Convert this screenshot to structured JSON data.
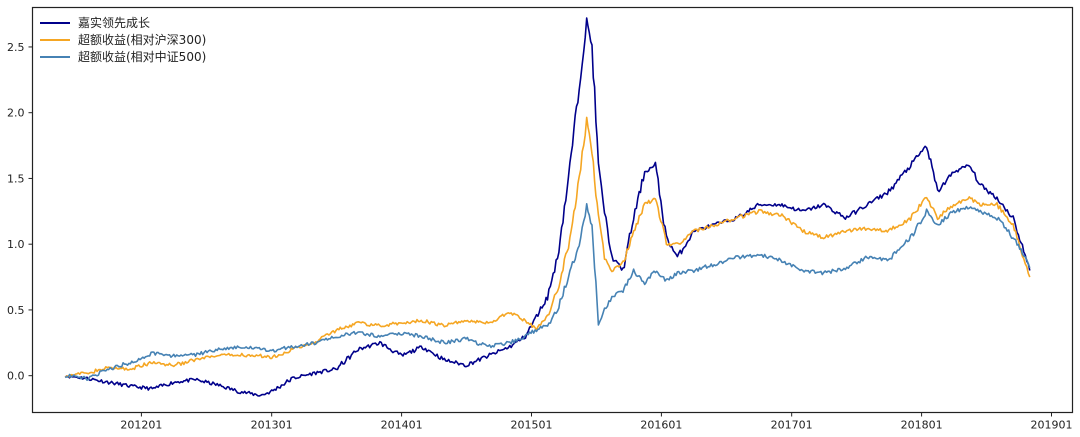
{
  "chart_data": {
    "type": "line",
    "title": "",
    "xlabel": "",
    "ylabel": "",
    "legend_position": "top-left",
    "grid": false,
    "xlim": [
      "2011-03-01",
      "2019-03-01"
    ],
    "ylim": [
      -0.28,
      2.8
    ],
    "x_ticks": [
      {
        "date": "2012-01-01",
        "label": "201201"
      },
      {
        "date": "2013-01-01",
        "label": "201301"
      },
      {
        "date": "2014-01-01",
        "label": "201401"
      },
      {
        "date": "2015-01-01",
        "label": "201501"
      },
      {
        "date": "2016-01-01",
        "label": "201601"
      },
      {
        "date": "2017-01-01",
        "label": "201701"
      },
      {
        "date": "2018-01-01",
        "label": "201801"
      },
      {
        "date": "2019-01-01",
        "label": "201901"
      }
    ],
    "y_ticks": [
      {
        "value": 0.0,
        "label": "0.0"
      },
      {
        "value": 0.5,
        "label": "0.5"
      },
      {
        "value": 1.0,
        "label": "1.0"
      },
      {
        "value": 1.5,
        "label": "1.5"
      },
      {
        "value": 2.0,
        "label": "2.0"
      },
      {
        "value": 2.5,
        "label": "2.5"
      }
    ],
    "series": [
      {
        "name": "嘉实领先成长",
        "color": "#00008b",
        "points": [
          [
            "2011-06-01",
            0.0
          ],
          [
            "2011-08-01",
            -0.02
          ],
          [
            "2011-10-01",
            -0.05
          ],
          [
            "2011-12-01",
            -0.08
          ],
          [
            "2012-02-01",
            -0.1
          ],
          [
            "2012-04-01",
            -0.05
          ],
          [
            "2012-06-01",
            -0.03
          ],
          [
            "2012-08-01",
            -0.07
          ],
          [
            "2012-10-01",
            -0.12
          ],
          [
            "2012-12-01",
            -0.15
          ],
          [
            "2013-01-01",
            -0.12
          ],
          [
            "2013-03-01",
            -0.02
          ],
          [
            "2013-05-01",
            0.02
          ],
          [
            "2013-07-01",
            0.05
          ],
          [
            "2013-09-01",
            0.2
          ],
          [
            "2013-11-01",
            0.25
          ],
          [
            "2014-01-01",
            0.15
          ],
          [
            "2014-03-01",
            0.22
          ],
          [
            "2014-05-01",
            0.12
          ],
          [
            "2014-07-01",
            0.08
          ],
          [
            "2014-09-01",
            0.15
          ],
          [
            "2014-11-01",
            0.22
          ],
          [
            "2014-12-15",
            0.3
          ],
          [
            "2015-01-15",
            0.45
          ],
          [
            "2015-02-15",
            0.6
          ],
          [
            "2015-03-15",
            0.9
          ],
          [
            "2015-04-15",
            1.5
          ],
          [
            "2015-05-15",
            2.2
          ],
          [
            "2015-06-05",
            2.7
          ],
          [
            "2015-06-20",
            2.5
          ],
          [
            "2015-07-08",
            1.6
          ],
          [
            "2015-07-25",
            1.25
          ],
          [
            "2015-08-15",
            0.9
          ],
          [
            "2015-09-15",
            0.8
          ],
          [
            "2015-10-15",
            1.2
          ],
          [
            "2015-11-15",
            1.55
          ],
          [
            "2015-12-15",
            1.6
          ],
          [
            "2016-01-15",
            1.05
          ],
          [
            "2016-02-15",
            0.9
          ],
          [
            "2016-04-01",
            1.1
          ],
          [
            "2016-06-01",
            1.15
          ],
          [
            "2016-08-01",
            1.2
          ],
          [
            "2016-10-01",
            1.3
          ],
          [
            "2016-12-01",
            1.3
          ],
          [
            "2017-02-01",
            1.25
          ],
          [
            "2017-04-01",
            1.3
          ],
          [
            "2017-06-01",
            1.2
          ],
          [
            "2017-08-01",
            1.3
          ],
          [
            "2017-10-01",
            1.4
          ],
          [
            "2017-12-01",
            1.6
          ],
          [
            "2018-01-15",
            1.75
          ],
          [
            "2018-02-15",
            1.4
          ],
          [
            "2018-04-01",
            1.55
          ],
          [
            "2018-05-15",
            1.6
          ],
          [
            "2018-06-15",
            1.45
          ],
          [
            "2018-08-01",
            1.35
          ],
          [
            "2018-09-15",
            1.2
          ],
          [
            "2018-10-15",
            0.95
          ],
          [
            "2018-11-01",
            0.8
          ]
        ]
      },
      {
        "name": "超额收益(相对沪深300)",
        "color": "#f5a623",
        "points": [
          [
            "2011-06-01",
            0.0
          ],
          [
            "2011-08-01",
            0.02
          ],
          [
            "2011-10-01",
            0.06
          ],
          [
            "2011-12-01",
            0.05
          ],
          [
            "2012-02-01",
            0.1
          ],
          [
            "2012-04-01",
            0.08
          ],
          [
            "2012-06-01",
            0.12
          ],
          [
            "2012-08-01",
            0.15
          ],
          [
            "2012-10-01",
            0.16
          ],
          [
            "2012-12-01",
            0.15
          ],
          [
            "2013-01-01",
            0.14
          ],
          [
            "2013-03-01",
            0.2
          ],
          [
            "2013-05-01",
            0.25
          ],
          [
            "2013-07-01",
            0.35
          ],
          [
            "2013-09-01",
            0.4
          ],
          [
            "2013-11-01",
            0.38
          ],
          [
            "2014-01-01",
            0.4
          ],
          [
            "2014-03-01",
            0.42
          ],
          [
            "2014-05-01",
            0.38
          ],
          [
            "2014-07-01",
            0.42
          ],
          [
            "2014-09-01",
            0.4
          ],
          [
            "2014-11-01",
            0.48
          ],
          [
            "2014-12-15",
            0.42
          ],
          [
            "2015-01-15",
            0.35
          ],
          [
            "2015-02-15",
            0.45
          ],
          [
            "2015-03-15",
            0.65
          ],
          [
            "2015-04-15",
            1.0
          ],
          [
            "2015-05-15",
            1.5
          ],
          [
            "2015-06-05",
            1.95
          ],
          [
            "2015-06-20",
            1.7
          ],
          [
            "2015-07-08",
            1.2
          ],
          [
            "2015-07-25",
            0.9
          ],
          [
            "2015-08-15",
            0.8
          ],
          [
            "2015-09-15",
            0.85
          ],
          [
            "2015-10-15",
            1.1
          ],
          [
            "2015-11-15",
            1.3
          ],
          [
            "2015-12-15",
            1.35
          ],
          [
            "2016-01-15",
            1.0
          ],
          [
            "2016-02-15",
            1.0
          ],
          [
            "2016-04-01",
            1.1
          ],
          [
            "2016-06-01",
            1.15
          ],
          [
            "2016-08-01",
            1.2
          ],
          [
            "2016-10-01",
            1.25
          ],
          [
            "2016-12-01",
            1.22
          ],
          [
            "2017-02-01",
            1.1
          ],
          [
            "2017-04-01",
            1.05
          ],
          [
            "2017-06-01",
            1.1
          ],
          [
            "2017-08-01",
            1.12
          ],
          [
            "2017-10-01",
            1.1
          ],
          [
            "2017-12-01",
            1.2
          ],
          [
            "2018-01-15",
            1.35
          ],
          [
            "2018-02-15",
            1.2
          ],
          [
            "2018-04-01",
            1.3
          ],
          [
            "2018-05-15",
            1.35
          ],
          [
            "2018-06-15",
            1.3
          ],
          [
            "2018-08-01",
            1.3
          ],
          [
            "2018-09-15",
            1.15
          ],
          [
            "2018-10-15",
            0.9
          ],
          [
            "2018-11-01",
            0.75
          ]
        ]
      },
      {
        "name": "超额收益(相对中证500)",
        "color": "#4682b4",
        "points": [
          [
            "2011-06-01",
            0.0
          ],
          [
            "2011-08-01",
            -0.02
          ],
          [
            "2011-10-01",
            0.05
          ],
          [
            "2011-12-01",
            0.1
          ],
          [
            "2012-02-01",
            0.17
          ],
          [
            "2012-04-01",
            0.15
          ],
          [
            "2012-06-01",
            0.16
          ],
          [
            "2012-08-01",
            0.2
          ],
          [
            "2012-10-01",
            0.22
          ],
          [
            "2012-12-01",
            0.2
          ],
          [
            "2013-01-01",
            0.19
          ],
          [
            "2013-03-01",
            0.22
          ],
          [
            "2013-05-01",
            0.25
          ],
          [
            "2013-07-01",
            0.3
          ],
          [
            "2013-09-01",
            0.33
          ],
          [
            "2013-11-01",
            0.3
          ],
          [
            "2014-01-01",
            0.32
          ],
          [
            "2014-03-01",
            0.3
          ],
          [
            "2014-05-01",
            0.25
          ],
          [
            "2014-07-01",
            0.28
          ],
          [
            "2014-09-01",
            0.22
          ],
          [
            "2014-11-01",
            0.25
          ],
          [
            "2014-12-15",
            0.3
          ],
          [
            "2015-01-15",
            0.35
          ],
          [
            "2015-02-15",
            0.38
          ],
          [
            "2015-03-15",
            0.5
          ],
          [
            "2015-04-15",
            0.75
          ],
          [
            "2015-05-15",
            1.0
          ],
          [
            "2015-06-05",
            1.3
          ],
          [
            "2015-06-20",
            1.1
          ],
          [
            "2015-07-08",
            0.4
          ],
          [
            "2015-07-25",
            0.5
          ],
          [
            "2015-08-15",
            0.6
          ],
          [
            "2015-09-15",
            0.65
          ],
          [
            "2015-10-15",
            0.8
          ],
          [
            "2015-11-15",
            0.7
          ],
          [
            "2015-12-15",
            0.8
          ],
          [
            "2016-01-15",
            0.72
          ],
          [
            "2016-02-15",
            0.78
          ],
          [
            "2016-04-01",
            0.8
          ],
          [
            "2016-06-01",
            0.85
          ],
          [
            "2016-08-01",
            0.9
          ],
          [
            "2016-10-01",
            0.92
          ],
          [
            "2016-12-01",
            0.88
          ],
          [
            "2017-02-01",
            0.8
          ],
          [
            "2017-04-01",
            0.78
          ],
          [
            "2017-06-01",
            0.82
          ],
          [
            "2017-08-01",
            0.9
          ],
          [
            "2017-10-01",
            0.88
          ],
          [
            "2017-12-01",
            1.05
          ],
          [
            "2018-01-15",
            1.25
          ],
          [
            "2018-02-15",
            1.15
          ],
          [
            "2018-04-01",
            1.25
          ],
          [
            "2018-05-15",
            1.28
          ],
          [
            "2018-06-15",
            1.25
          ],
          [
            "2018-08-01",
            1.2
          ],
          [
            "2018-09-15",
            1.05
          ],
          [
            "2018-10-15",
            0.92
          ],
          [
            "2018-11-01",
            0.82
          ]
        ]
      }
    ]
  }
}
